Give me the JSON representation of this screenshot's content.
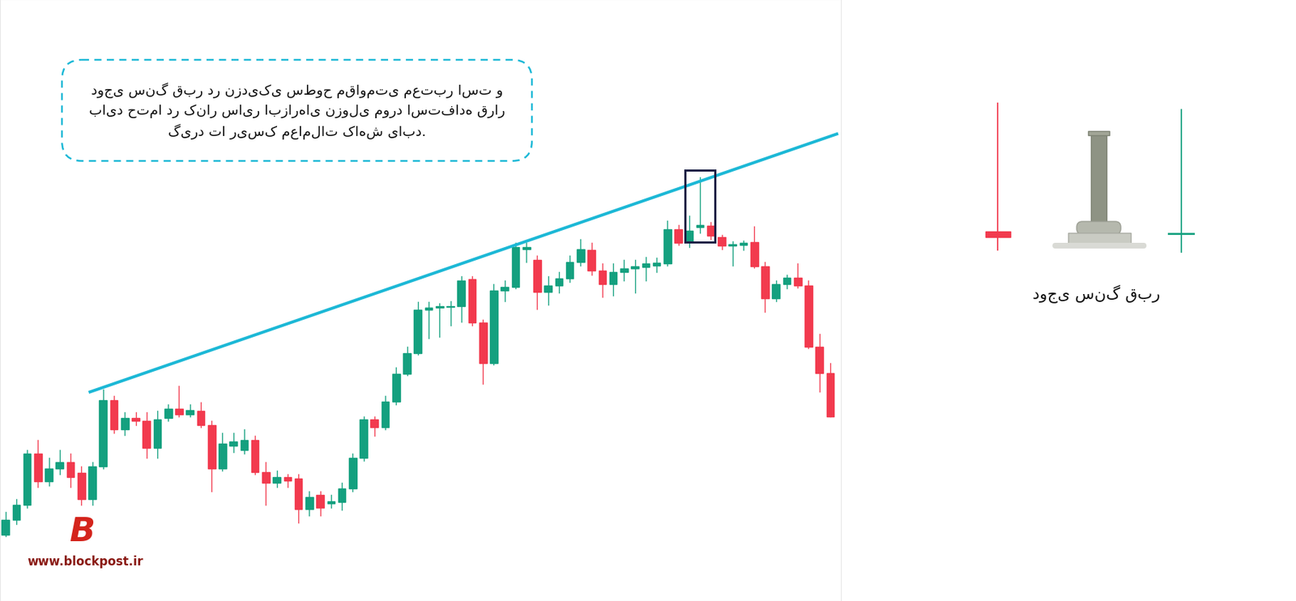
{
  "chart_data": {
    "type": "candlestick",
    "note": [
      "دوجی سنگ قبر در نزدیکی سطوح مقاومتی معتبر است و",
      "باید حتما در کنار سایر ابزارهای نزولی مورد استفاده قرار",
      "گیرد تا ریسک معاملات کاهش یابد."
    ],
    "icon_label": "دوجی سنگ قبر",
    "logo": "B",
    "watermark": "www.blockpost.ir",
    "tick_labels": false,
    "xlim": [
      -0.5,
      77
    ],
    "ylim": [
      -28,
      700
    ],
    "x": [
      0,
      1,
      2,
      3,
      4,
      5,
      6,
      7,
      8,
      9,
      10,
      11,
      12,
      13,
      14,
      15,
      16,
      17,
      18,
      19,
      20,
      21,
      22,
      23,
      24,
      25,
      26,
      27,
      28,
      29,
      30,
      31,
      32,
      33,
      34,
      35,
      36,
      37,
      38,
      39,
      40,
      41,
      42,
      43,
      44,
      45,
      46,
      47,
      48,
      49,
      50,
      51,
      52,
      53,
      54,
      55,
      56,
      57,
      58,
      59,
      60,
      61,
      62,
      63,
      64,
      65,
      66,
      67,
      68,
      69,
      70,
      71,
      72,
      73,
      74,
      75,
      76
    ],
    "open": [
      52,
      70,
      88,
      150,
      117,
      132,
      140,
      127,
      95,
      135,
      215,
      180,
      193,
      190,
      157,
      193,
      205,
      198,
      202,
      185,
      132,
      160,
      155,
      167,
      128,
      115,
      122,
      120,
      83,
      100,
      90,
      92,
      108,
      145,
      192,
      182,
      213,
      247,
      272,
      324,
      327,
      328,
      329,
      361,
      309,
      260,
      348,
      352,
      398,
      385,
      346,
      354,
      362,
      382,
      397,
      372,
      355,
      370,
      374,
      376,
      378,
      380,
      422,
      407,
      424,
      426,
      412,
      402,
      403,
      406,
      377,
      338,
      355,
      363,
      354,
      280,
      248
    ],
    "high": [
      80,
      95,
      155,
      167,
      145,
      155,
      150,
      135,
      140,
      228,
      220,
      200,
      200,
      200,
      202,
      210,
      232,
      210,
      212,
      190,
      175,
      175,
      180,
      172,
      140,
      130,
      125,
      125,
      105,
      105,
      100,
      115,
      150,
      195,
      195,
      220,
      255,
      280,
      334,
      334,
      332,
      335,
      365,
      365,
      312,
      355,
      360,
      405,
      405,
      390,
      365,
      370,
      390,
      410,
      405,
      380,
      380,
      385,
      385,
      388,
      387,
      432,
      427,
      438,
      485,
      430,
      415,
      407,
      408,
      425,
      382,
      360,
      367,
      380,
      360,
      295,
      260
    ],
    "low": [
      50,
      65,
      85,
      110,
      112,
      125,
      110,
      88,
      88,
      132,
      175,
      173,
      185,
      145,
      145,
      190,
      195,
      195,
      182,
      105,
      130,
      152,
      150,
      125,
      88,
      110,
      110,
      67,
      75,
      75,
      85,
      82,
      105,
      142,
      172,
      180,
      210,
      245,
      270,
      290,
      292,
      305,
      310,
      305,
      235,
      258,
      335,
      350,
      382,
      325,
      330,
      345,
      358,
      378,
      367,
      340,
      342,
      360,
      345,
      360,
      370,
      378,
      403,
      400,
      417,
      410,
      398,
      378,
      397,
      375,
      322,
      335,
      350,
      351,
      278,
      225,
      195
    ],
    "close": [
      70,
      88,
      150,
      117,
      132,
      140,
      122,
      95,
      135,
      215,
      180,
      193,
      190,
      157,
      192,
      205,
      198,
      203,
      185,
      132,
      162,
      165,
      167,
      128,
      115,
      122,
      118,
      83,
      98,
      85,
      93,
      108,
      145,
      192,
      182,
      213,
      247,
      272,
      324,
      327,
      329,
      329,
      360,
      309,
      260,
      348,
      352,
      400,
      400,
      346,
      354,
      362,
      382,
      398,
      372,
      355,
      370,
      374,
      377,
      380,
      381,
      422,
      405,
      420,
      427,
      414,
      402,
      404,
      405,
      377,
      338,
      355,
      363,
      354,
      280,
      248,
      195
    ],
    "colors": {
      "up": "#14a07f",
      "down": "#f23a4e"
    },
    "trendline": {
      "x": [
        7.8,
        76.6
      ],
      "y": [
        225,
        537
      ],
      "color": "#1cb8d6"
    },
    "highlight": {
      "start": 63,
      "end": 65,
      "color": "#1b1f45"
    }
  }
}
